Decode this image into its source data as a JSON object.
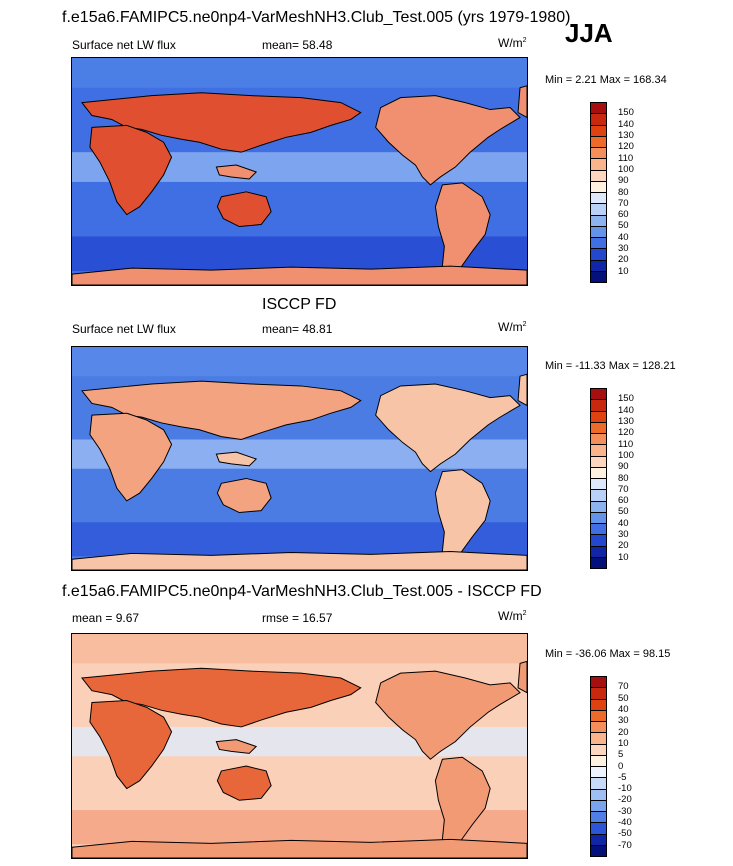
{
  "header": {
    "title": "f.e15a6.FAMIPC5.ne0np4-VarMeshNH3.Club_Test.005 (yrs 1979-1980)",
    "season": "JJA"
  },
  "panels": [
    {
      "heading": "",
      "left_label": "Surface net LW flux",
      "mid_label": "mean=  58.48",
      "units": "W/m",
      "units_sup": "2",
      "minmax": "Min =   2.21 Max = 168.34",
      "scale": [
        "150",
        "140",
        "130",
        "120",
        "110",
        "100",
        "90",
        "80",
        "70",
        "60",
        "50",
        "40",
        "30",
        "20",
        "10"
      ],
      "colors": [
        "#a50f0f",
        "#c8280e",
        "#df4210",
        "#ee6a2a",
        "#f48e5a",
        "#f9b48c",
        "#fcd6bf",
        "#fff2e0",
        "#dde9fb",
        "#b9d1f7",
        "#8db2f0",
        "#6493ea",
        "#3f6fe3",
        "#2447cf",
        "#1026a6",
        "#05117a"
      ],
      "fill": {
        "land_w": "#e05030",
        "land_e": "#f09070",
        "sea": "#3f6fe3",
        "south": "#2447cf",
        "north": "#4f83e6",
        "tropic": "#8db2f0"
      }
    },
    {
      "heading": "ISCCP FD",
      "left_label": "Surface net LW flux",
      "mid_label": "mean=  48.81",
      "units": "W/m",
      "units_sup": "2",
      "minmax": "Min = -11.33 Max = 128.21",
      "scale": [
        "150",
        "140",
        "130",
        "120",
        "110",
        "100",
        "90",
        "80",
        "70",
        "60",
        "50",
        "40",
        "30",
        "20",
        "10"
      ],
      "colors": [
        "#a50f0f",
        "#c8280e",
        "#df4210",
        "#ee6a2a",
        "#f48e5a",
        "#f9b48c",
        "#fcd6bf",
        "#fff2e0",
        "#dde9fb",
        "#b9d1f7",
        "#8db2f0",
        "#6493ea",
        "#3f6fe3",
        "#2447cf",
        "#1026a6",
        "#05117a"
      ],
      "fill": {
        "land_w": "#f4a380",
        "land_e": "#f8c4a8",
        "sea": "#4a7ce4",
        "south": "#2d55d8",
        "north": "#5a8ae8",
        "tropic": "#9bbcf2"
      }
    },
    {
      "heading": "f.e15a6.FAMIPC5.ne0np4-VarMeshNH3.Club_Test.005 - ISCCP FD",
      "left_label": "mean =   9.67",
      "mid_label": "rmse =  16.57",
      "units": "W/m",
      "units_sup": "2",
      "minmax": "Min = -36.06 Max =  98.15",
      "scale": [
        "70",
        "50",
        "40",
        "30",
        "20",
        "10",
        "5",
        "0",
        "-5",
        "-10",
        "-20",
        "-30",
        "-40",
        "-50",
        "-70"
      ],
      "colors": [
        "#a50f0f",
        "#c8280e",
        "#df4210",
        "#ee6a2a",
        "#f48e5a",
        "#f9b48c",
        "#fcd6bf",
        "#fff2e0",
        "#eef4fd",
        "#c7dbf9",
        "#9fbff3",
        "#7aa3ee",
        "#4f7fe6",
        "#2d55d8",
        "#1026a6",
        "#05117a"
      ],
      "fill": {
        "land_w": "#e8673a",
        "land_e": "#f29a73",
        "sea": "#fbd0b8",
        "south": "#f4a080",
        "north": "#f7b898",
        "tropic": "#e0eafb"
      }
    }
  ]
}
